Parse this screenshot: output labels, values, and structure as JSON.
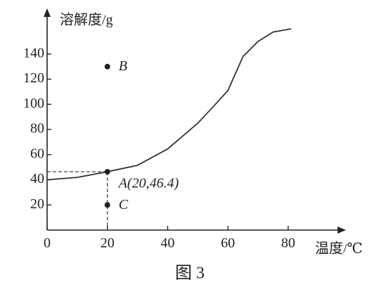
{
  "chart_data": {
    "type": "line",
    "y_label": "溶解度/g",
    "x_label": "温度/℃",
    "caption": "图 3",
    "xlim": [
      0,
      98
    ],
    "ylim": [
      0,
      174
    ],
    "xticks": [
      0,
      20,
      40,
      60,
      80
    ],
    "yticks": [
      20,
      40,
      60,
      80,
      100,
      120,
      140
    ],
    "series": [
      {
        "color": "#333333",
        "x": [
          0,
          10,
          20,
          30,
          40,
          50,
          55,
          60,
          65,
          70,
          75,
          81
        ],
        "values": [
          40,
          41.9,
          46.4,
          51.5,
          64.5,
          85,
          97.8,
          111,
          138,
          150,
          157.5,
          160
        ]
      }
    ],
    "points": [
      {
        "label": "B",
        "x": 20,
        "y": 130
      },
      {
        "label": "A(20,46.4)",
        "x": 20,
        "y": 46.4
      },
      {
        "label": "C",
        "x": 20,
        "y": 20
      }
    ]
  }
}
